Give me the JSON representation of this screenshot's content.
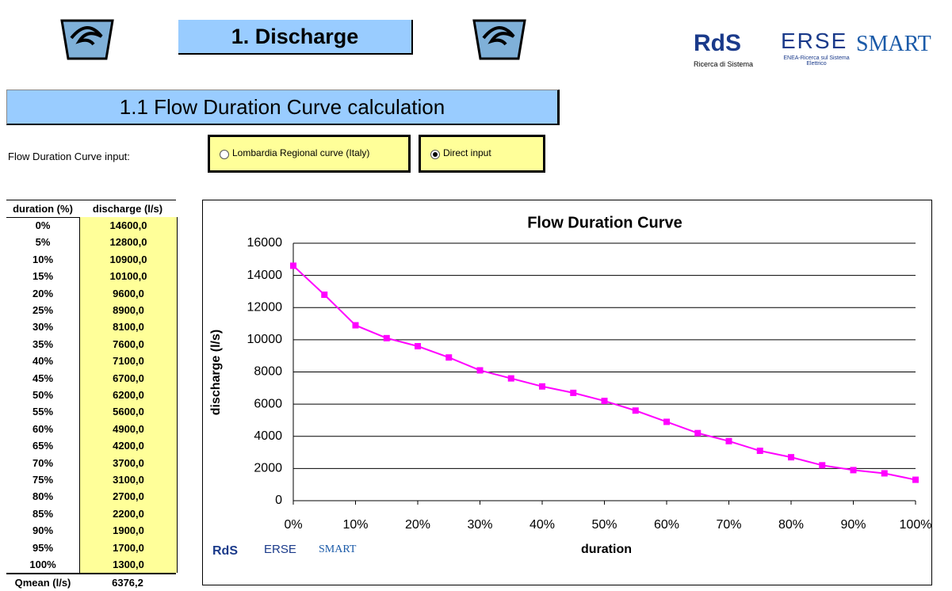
{
  "header": {
    "title": "1. Discharge",
    "logos": [
      "RdS",
      "Ricerca di Sistema",
      "ERSE",
      "ENEA-Ricerca sul Sistema Elettrico",
      "SMART"
    ]
  },
  "section": {
    "title": "1.1 Flow Duration Curve calculation"
  },
  "input": {
    "label": "Flow Duration Curve input:",
    "options": [
      {
        "label": "Lombardia Regional curve (Italy)",
        "selected": false
      },
      {
        "label": "Direct input",
        "selected": true
      }
    ]
  },
  "table": {
    "columns": [
      "duration (%)",
      "discharge (l/s)"
    ],
    "rows": [
      [
        "0%",
        "14600,0"
      ],
      [
        "5%",
        "12800,0"
      ],
      [
        "10%",
        "10900,0"
      ],
      [
        "15%",
        "10100,0"
      ],
      [
        "20%",
        "9600,0"
      ],
      [
        "25%",
        "8900,0"
      ],
      [
        "30%",
        "8100,0"
      ],
      [
        "35%",
        "7600,0"
      ],
      [
        "40%",
        "7100,0"
      ],
      [
        "45%",
        "6700,0"
      ],
      [
        "50%",
        "6200,0"
      ],
      [
        "55%",
        "5600,0"
      ],
      [
        "60%",
        "4900,0"
      ],
      [
        "65%",
        "4200,0"
      ],
      [
        "70%",
        "3700,0"
      ],
      [
        "75%",
        "3100,0"
      ],
      [
        "80%",
        "2700,0"
      ],
      [
        "85%",
        "2200,0"
      ],
      [
        "90%",
        "1900,0"
      ],
      [
        "95%",
        "1700,0"
      ],
      [
        "100%",
        "1300,0"
      ]
    ],
    "footer": [
      "Qmean (l/s)",
      "6376,2"
    ]
  },
  "chart_data": {
    "type": "line",
    "title": "Flow Duration Curve",
    "x_label": "duration",
    "y_label": "discharge (l/s)",
    "x": [
      0,
      5,
      10,
      15,
      20,
      25,
      30,
      35,
      40,
      45,
      50,
      55,
      60,
      65,
      70,
      75,
      80,
      85,
      90,
      95,
      100
    ],
    "values": [
      14600,
      12800,
      10900,
      10100,
      9600,
      8900,
      8100,
      7600,
      7100,
      6700,
      6200,
      5600,
      4900,
      4200,
      3700,
      3100,
      2700,
      2200,
      1900,
      1700,
      1300
    ],
    "color": "#ff00ff",
    "marker": "square",
    "xlim": [
      0,
      100
    ],
    "xticks": [
      {
        "value": 0,
        "label": "0%"
      },
      {
        "value": 10,
        "label": "10%"
      },
      {
        "value": 20,
        "label": "20%"
      },
      {
        "value": 30,
        "label": "30%"
      },
      {
        "value": 40,
        "label": "40%"
      },
      {
        "value": 50,
        "label": "50%"
      },
      {
        "value": 60,
        "label": "60%"
      },
      {
        "value": 70,
        "label": "70%"
      },
      {
        "value": 80,
        "label": "80%"
      },
      {
        "value": 90,
        "label": "90%"
      },
      {
        "value": 100,
        "label": "100%"
      }
    ],
    "ylim": [
      0,
      16000
    ],
    "yticks": [
      0,
      2000,
      4000,
      6000,
      8000,
      10000,
      12000,
      14000,
      16000
    ],
    "grid": true
  }
}
